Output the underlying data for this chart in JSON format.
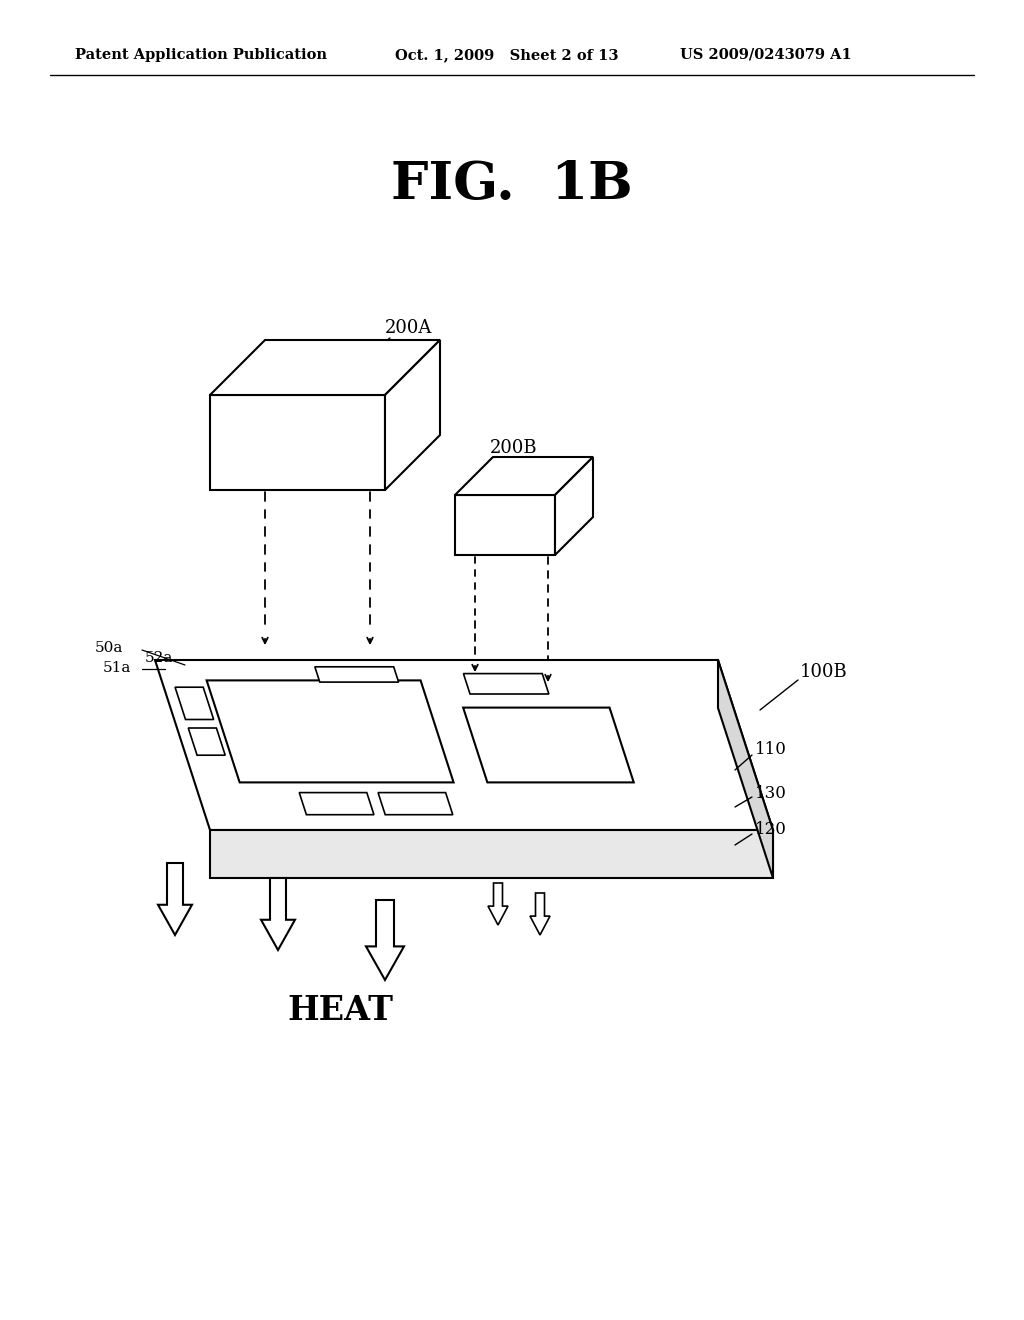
{
  "bg_color": "#ffffff",
  "header_left": "Patent Application Publication",
  "header_mid": "Oct. 1, 2009   Sheet 2 of 13",
  "header_right": "US 2009/0243079 A1",
  "fig_label": "FIG.  1B",
  "label_200A": "200A",
  "label_200B": "200B",
  "label_100B": "100B",
  "label_50a": "50a",
  "label_51a": "51a",
  "label_52a": "52a",
  "label_110": "110",
  "label_130": "130",
  "label_120": "120",
  "label_HEAT": "HEAT",
  "line_color": "#000000",
  "lw": 1.5
}
